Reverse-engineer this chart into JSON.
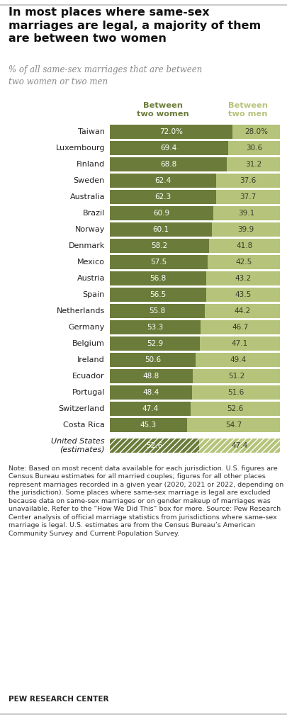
{
  "title": "In most places where same-sex\nmarriages are legal, a majority of them\nare between two women",
  "subtitle": "% of all same-sex marriages that are between\ntwo women or two men",
  "col1_header": "Between\ntwo women",
  "col2_header": "Between\ntwo men",
  "countries": [
    "Taiwan",
    "Luxembourg",
    "Finland",
    "Sweden",
    "Australia",
    "Brazil",
    "Norway",
    "Denmark",
    "Mexico",
    "Austria",
    "Spain",
    "Netherlands",
    "Germany",
    "Belgium",
    "Ireland",
    "Ecuador",
    "Portugal",
    "Switzerland",
    "Costa Rica"
  ],
  "women_pct": [
    72.0,
    69.4,
    68.8,
    62.4,
    62.3,
    60.9,
    60.1,
    58.2,
    57.5,
    56.8,
    56.5,
    55.8,
    53.3,
    52.9,
    50.6,
    48.8,
    48.4,
    47.4,
    45.3
  ],
  "men_pct": [
    28.0,
    30.6,
    31.2,
    37.6,
    37.7,
    39.1,
    39.9,
    41.8,
    42.5,
    43.2,
    43.5,
    44.2,
    46.7,
    47.1,
    49.4,
    51.2,
    51.6,
    52.6,
    54.7
  ],
  "women_labels": [
    "72.0%",
    "69.4",
    "68.8",
    "62.4",
    "62.3",
    "60.9",
    "60.1",
    "58.2",
    "57.5",
    "56.8",
    "56.5",
    "55.8",
    "53.3",
    "52.9",
    "50.6",
    "48.8",
    "48.4",
    "47.4",
    "45.3"
  ],
  "men_labels": [
    "28.0%",
    "30.6",
    "31.2",
    "37.6",
    "37.7",
    "39.1",
    "39.9",
    "41.8",
    "42.5",
    "43.2",
    "43.5",
    "44.2",
    "46.7",
    "47.1",
    "49.4",
    "51.2",
    "51.6",
    "52.6",
    "54.7"
  ],
  "us_women": 52.6,
  "us_men": 47.4,
  "color_women_dark": "#6b7c3a",
  "color_women_light": "#8e9e50",
  "color_men_light": "#b5c47a",
  "color_men_lighter": "#c8d68f",
  "color_dark_bar": "#6b7c3a",
  "color_light_bar": "#b5c47a",
  "note_text": "Note: Based on most recent data available for each jurisdiction. U.S. figures are Census Bureau estimates for all married couples; figures for all other places represent marriages recorded in a given year (2020, 2021 or 2022, depending on the jurisdiction). Some places where same-sex marriage is legal are excluded because data on same-sex marriages or on gender makeup of marriages was unavailable. Refer to the “How We Did This” box for more. Source: Pew Research Center analysis of official marriage statistics from jurisdictions where same-sex marriage is legal. U.S. estimates are from the Census Bureau’s American Community Survey and Current Population Survey.",
  "source_text": "PEW RESEARCH CENTER",
  "background_color": "#ffffff",
  "header_color_women": "#6b7c3a",
  "header_color_men": "#b5c47a"
}
